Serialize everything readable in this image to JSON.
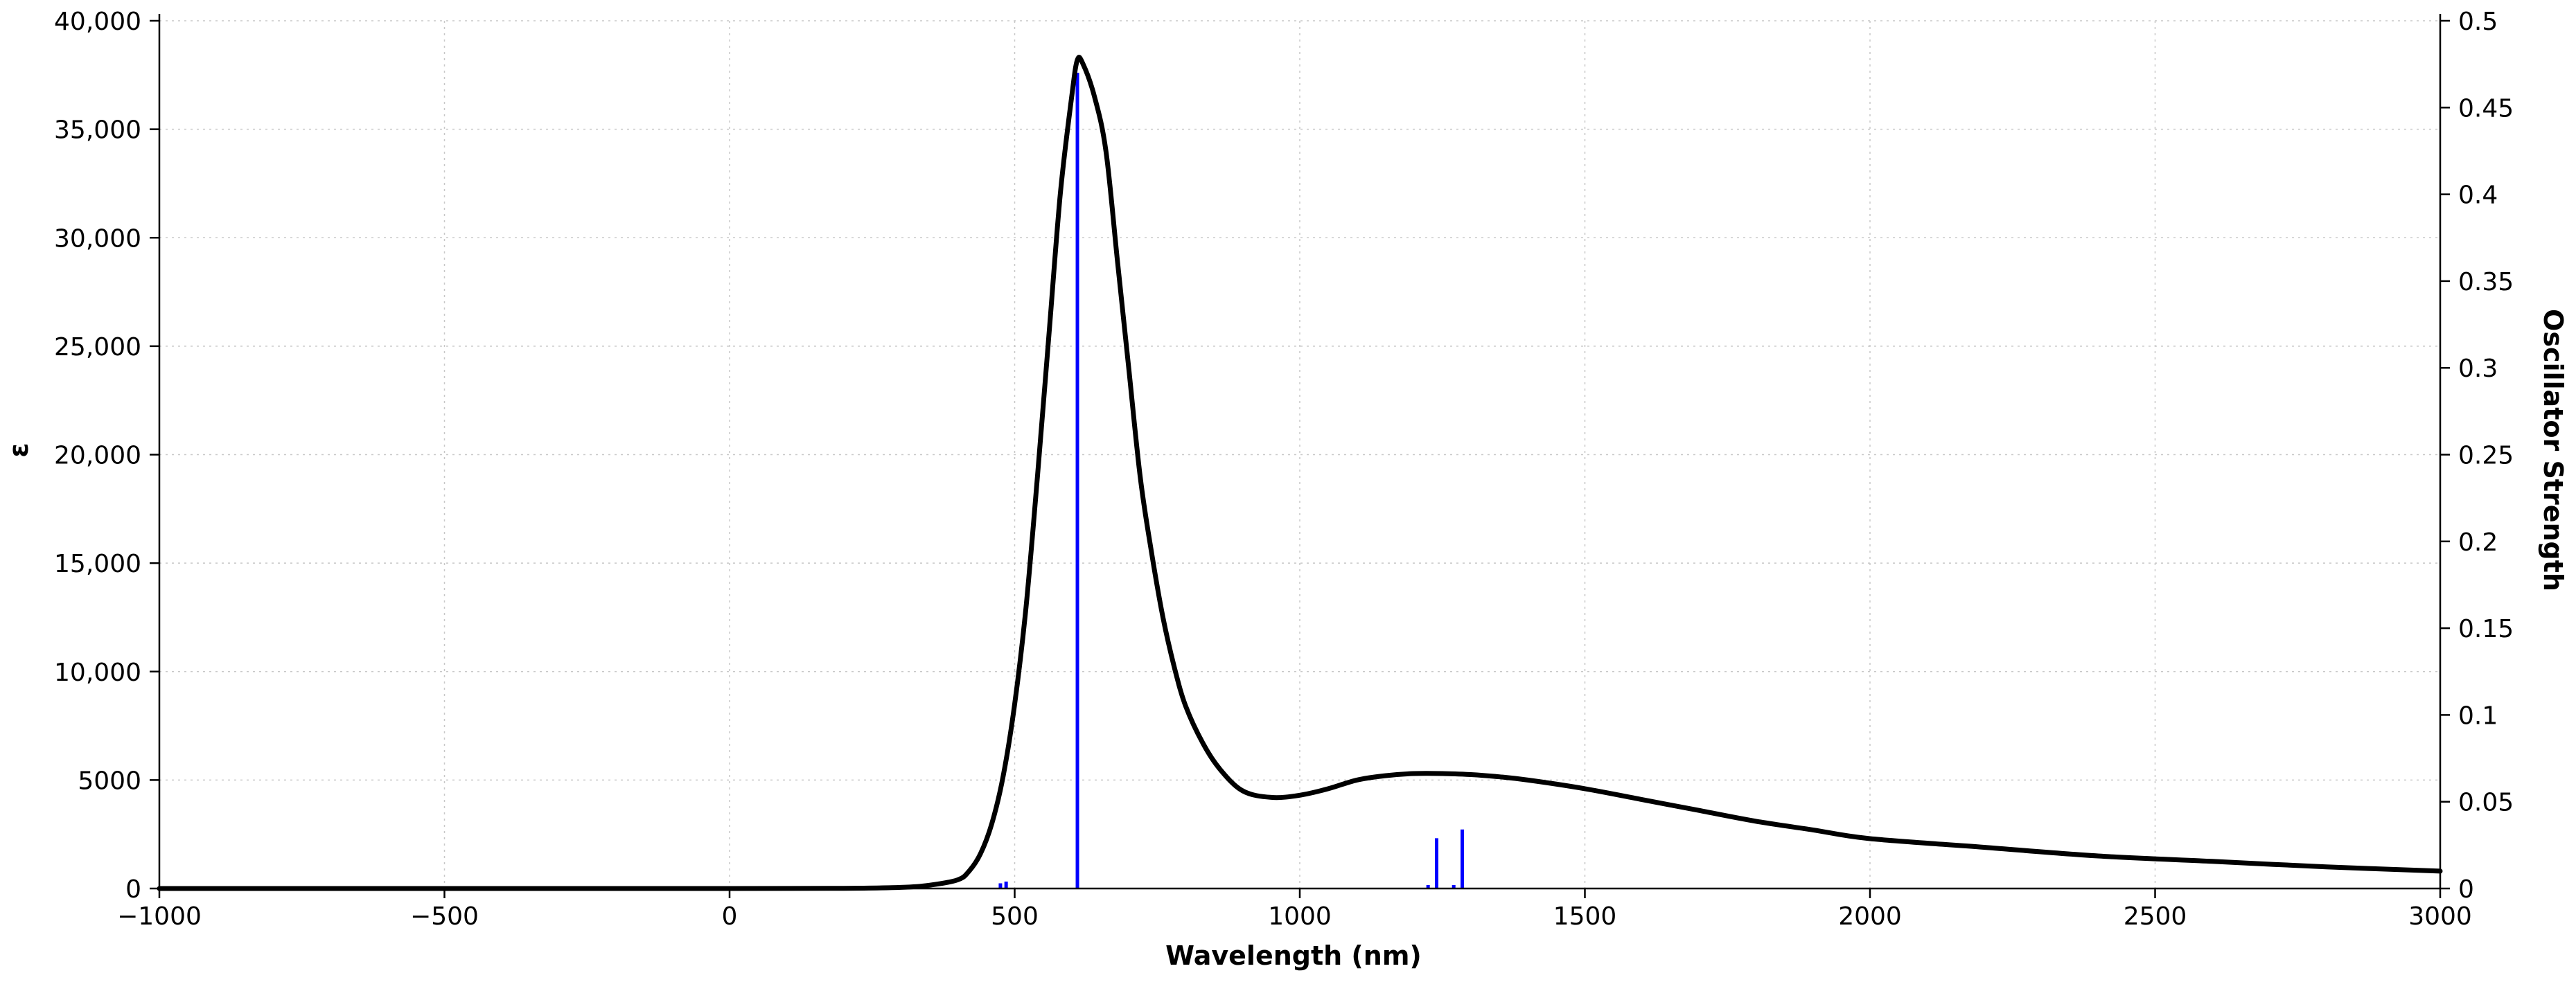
{
  "chart_data": {
    "type": "line",
    "xlabel": "Wavelength (nm)",
    "ylabel": "ε",
    "y2label": "Oscillator Strength",
    "xlim": [
      -1000,
      3000
    ],
    "ylim": [
      0,
      40000
    ],
    "y2lim": [
      0,
      0.5
    ],
    "grid": true,
    "legend": "none",
    "xticks": [
      -1000,
      -500,
      0,
      500,
      1000,
      1500,
      2000,
      2500,
      3000
    ],
    "xtick_labels": [
      "−1000",
      "−500",
      "0",
      "500",
      "1000",
      "1500",
      "2000",
      "2500",
      "3000"
    ],
    "yticks": [
      0,
      5000,
      10000,
      15000,
      20000,
      25000,
      30000,
      35000,
      40000
    ],
    "ytick_labels": [
      "0",
      "5000",
      "10,000",
      "15,000",
      "20,000",
      "25,000",
      "30,000",
      "35,000",
      "40,000"
    ],
    "y2ticks": [
      0,
      0.05,
      0.1,
      0.15,
      0.2,
      0.25,
      0.3,
      0.35,
      0.4,
      0.45,
      0.5
    ],
    "y2tick_labels": [
      "0",
      "0.05",
      "0.1",
      "0.15",
      "0.2",
      "0.25",
      "0.3",
      "0.35",
      "0.4",
      "0.45",
      "0.5"
    ],
    "spectrum": {
      "color": "#000000",
      "x": [
        -1000,
        -500,
        0,
        200,
        300,
        350,
        400,
        420,
        440,
        460,
        480,
        500,
        520,
        540,
        560,
        580,
        600,
        610,
        620,
        640,
        660,
        680,
        700,
        720,
        740,
        760,
        780,
        800,
        830,
        860,
        900,
        950,
        1000,
        1050,
        1100,
        1150,
        1200,
        1250,
        1300,
        1350,
        1400,
        1500,
        1600,
        1700,
        1800,
        1900,
        2000,
        2200,
        2400,
        2600,
        2800,
        3000
      ],
      "y": [
        0,
        0,
        0,
        10,
        50,
        150,
        400,
        800,
        1600,
        3000,
        5200,
        8500,
        13000,
        19000,
        25500,
        32000,
        36500,
        38200,
        38000,
        36500,
        34000,
        29000,
        24000,
        19000,
        15500,
        12500,
        10200,
        8400,
        6700,
        5500,
        4500,
        4200,
        4300,
        4600,
        5000,
        5200,
        5300,
        5300,
        5250,
        5150,
        5000,
        4600,
        4100,
        3600,
        3100,
        2700,
        2300,
        1900,
        1500,
        1250,
        1000,
        800
      ]
    },
    "oscillators": {
      "color": "#0000ff",
      "wavelengths": [
        475,
        485,
        610,
        1225,
        1240,
        1270,
        1285
      ],
      "strengths": [
        0.003,
        0.004,
        0.47,
        0.002,
        0.029,
        0.002,
        0.034
      ]
    }
  }
}
